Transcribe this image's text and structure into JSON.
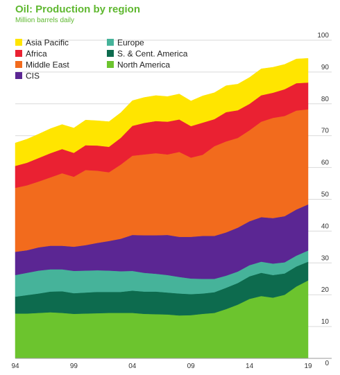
{
  "chart_data": {
    "type": "area",
    "stacked": true,
    "title": "Oil: Production by region",
    "subtitle": "Million barrels daily",
    "x": [
      1994,
      1995,
      1996,
      1997,
      1998,
      1999,
      2000,
      2001,
      2002,
      2003,
      2004,
      2005,
      2006,
      2007,
      2008,
      2009,
      2010,
      2011,
      2012,
      2013,
      2014,
      2015,
      2016,
      2017,
      2018,
      2019
    ],
    "x_tick_labels": [
      {
        "x": 1994,
        "label": "94"
      },
      {
        "x": 1999,
        "label": "99"
      },
      {
        "x": 2004,
        "label": "04"
      },
      {
        "x": 2009,
        "label": "09"
      },
      {
        "x": 2014,
        "label": "14"
      },
      {
        "x": 2019,
        "label": "19"
      }
    ],
    "y_ticks": [
      0,
      10,
      20,
      30,
      40,
      50,
      60,
      70,
      80,
      90,
      100
    ],
    "ylim": [
      0,
      100
    ],
    "y_axis_side": "right",
    "grid": true,
    "legend_placement": "top-left",
    "series": [
      {
        "name": "North America",
        "color": "#6cc42e",
        "values": [
          14.1,
          14.1,
          14.3,
          14.5,
          14.3,
          14.0,
          14.1,
          14.2,
          14.3,
          14.3,
          14.3,
          14.0,
          13.9,
          13.8,
          13.5,
          13.6,
          14.0,
          14.3,
          15.5,
          16.9,
          18.7,
          19.6,
          19.1,
          20.0,
          22.6,
          24.5
        ]
      },
      {
        "name": "S. & Cent. America",
        "color": "#0d6b4e",
        "values": [
          5.3,
          5.8,
          6.1,
          6.5,
          6.8,
          6.5,
          6.6,
          6.7,
          6.6,
          6.6,
          7.0,
          7.0,
          7.1,
          6.9,
          6.9,
          6.6,
          6.4,
          6.5,
          6.7,
          6.8,
          7.1,
          7.3,
          7.1,
          6.7,
          6.3,
          5.9
        ]
      },
      {
        "name": "Europe",
        "color": "#46b39a",
        "values": [
          6.8,
          7.0,
          7.2,
          7.0,
          6.9,
          7.0,
          6.9,
          6.8,
          6.7,
          6.5,
          6.2,
          5.9,
          5.6,
          5.5,
          5.2,
          4.9,
          4.6,
          4.2,
          3.8,
          3.6,
          3.5,
          3.5,
          3.6,
          3.5,
          3.4,
          3.5
        ]
      },
      {
        "name": "CIS",
        "color": "#5b2693",
        "values": [
          7.3,
          7.1,
          7.3,
          7.4,
          7.4,
          7.6,
          8.0,
          8.6,
          9.3,
          10.2,
          11.3,
          11.8,
          12.1,
          12.6,
          12.6,
          13.1,
          13.5,
          13.5,
          13.6,
          13.8,
          13.8,
          14.0,
          14.3,
          14.5,
          14.5,
          14.5
        ]
      },
      {
        "name": "Middle East",
        "color": "#f26b1d",
        "values": [
          20.1,
          20.4,
          20.7,
          21.5,
          22.8,
          22.0,
          23.6,
          22.7,
          21.6,
          23.3,
          24.9,
          25.4,
          25.8,
          25.3,
          26.7,
          24.9,
          25.5,
          28.2,
          28.6,
          28.2,
          28.6,
          30.0,
          31.5,
          31.5,
          31.1,
          29.9
        ]
      },
      {
        "name": "Africa",
        "color": "#ea2132",
        "values": [
          6.9,
          7.1,
          7.4,
          7.6,
          7.6,
          7.5,
          7.8,
          7.9,
          8.0,
          8.4,
          9.4,
          9.9,
          10.1,
          10.3,
          10.2,
          9.9,
          10.1,
          8.5,
          9.2,
          8.7,
          8.3,
          8.3,
          7.9,
          8.4,
          8.6,
          8.4
        ]
      },
      {
        "name": "Asia Pacific",
        "color": "#ffe500",
        "values": [
          7.2,
          7.4,
          7.5,
          7.7,
          7.7,
          7.8,
          7.9,
          7.8,
          7.9,
          7.9,
          7.9,
          8.0,
          8.0,
          7.9,
          8.0,
          7.9,
          8.4,
          8.3,
          8.3,
          8.2,
          8.3,
          8.3,
          8.0,
          7.8,
          7.6,
          7.6
        ]
      }
    ]
  },
  "legend": {
    "items": [
      {
        "name": "Asia Pacific",
        "color": "#ffe500"
      },
      {
        "name": "Africa",
        "color": "#ea2132"
      },
      {
        "name": "Middle East",
        "color": "#f26b1d"
      },
      {
        "name": "CIS",
        "color": "#5b2693"
      },
      {
        "name": "Europe",
        "color": "#46b39a"
      },
      {
        "name": "S. & Cent. America",
        "color": "#0d6b4e"
      },
      {
        "name": "North America",
        "color": "#6cc42e"
      }
    ]
  }
}
